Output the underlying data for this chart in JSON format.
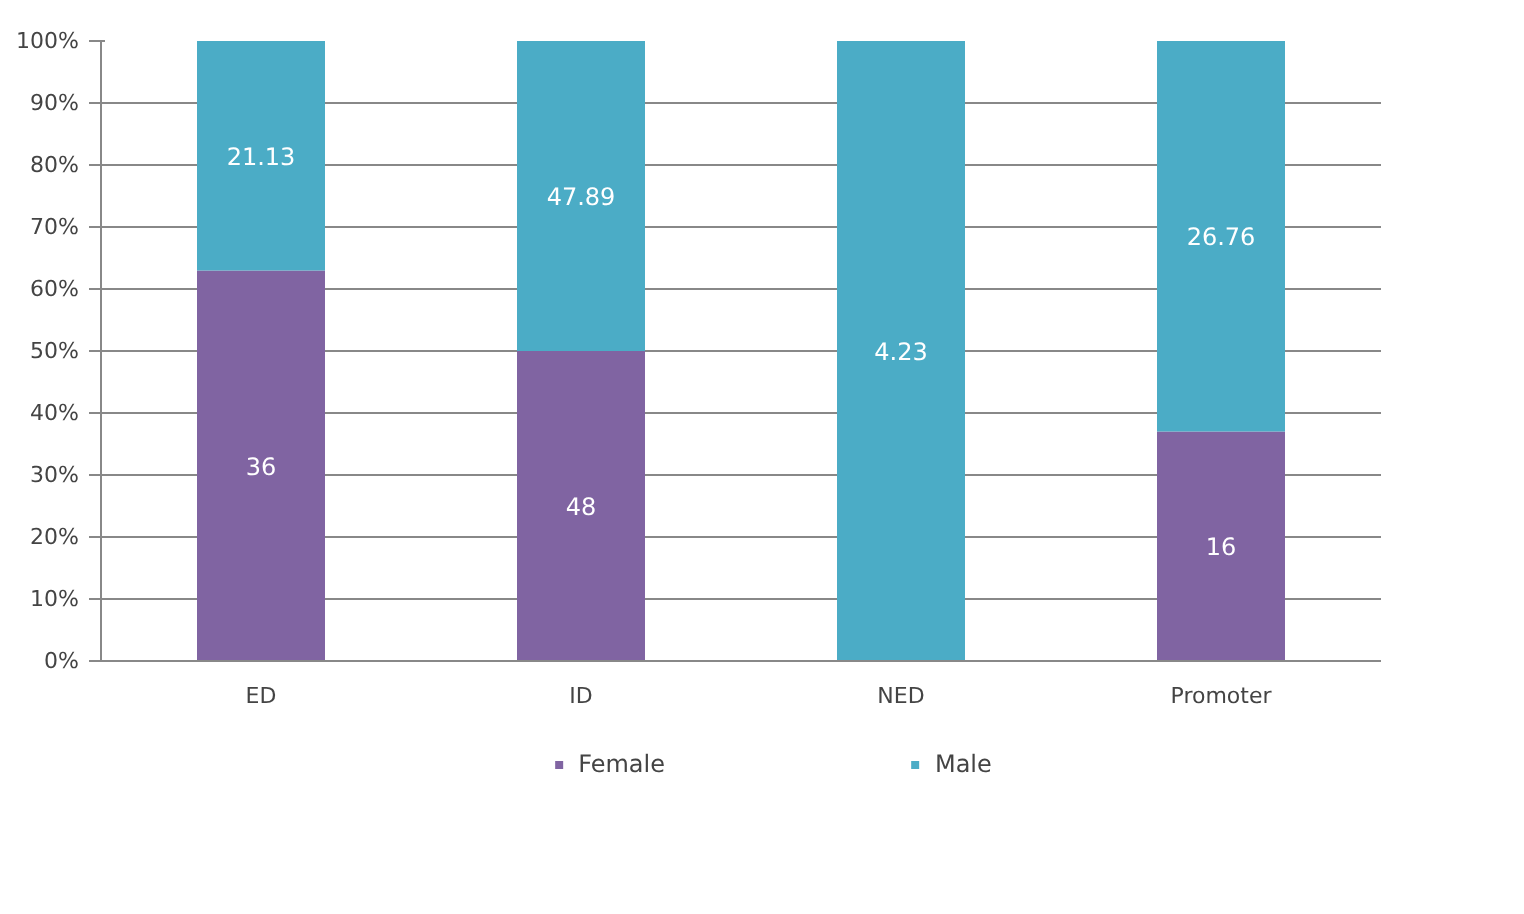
{
  "chart_data": {
    "type": "bar",
    "stacked": true,
    "categories": [
      "ED",
      "ID",
      "NED",
      "Promoter"
    ],
    "series": [
      {
        "name": "Female",
        "color": "#8064a2",
        "values": [
          63,
          50,
          0,
          37
        ]
      },
      {
        "name": "Male",
        "color": "#4bacc6",
        "values": [
          37,
          50,
          100,
          63
        ]
      }
    ],
    "annotations": [
      "36",
      "48",
      "16",
      "21.13",
      "47.89",
      "4.23",
      "26.76"
    ],
    "ylim": [
      0,
      100
    ],
    "yticks": [
      {
        "value": 0,
        "label": "0%"
      },
      {
        "value": 10,
        "label": "10%"
      },
      {
        "value": 20,
        "label": "20%"
      },
      {
        "value": 30,
        "label": "30%"
      },
      {
        "value": 40,
        "label": "40%"
      },
      {
        "value": 50,
        "label": "50%"
      },
      {
        "value": 60,
        "label": "60%"
      },
      {
        "value": 70,
        "label": "70%"
      },
      {
        "value": 80,
        "label": "80%"
      },
      {
        "value": 90,
        "label": "90%"
      },
      {
        "value": 100,
        "label": "100%"
      }
    ],
    "grid": "y",
    "legend": "bottom"
  }
}
